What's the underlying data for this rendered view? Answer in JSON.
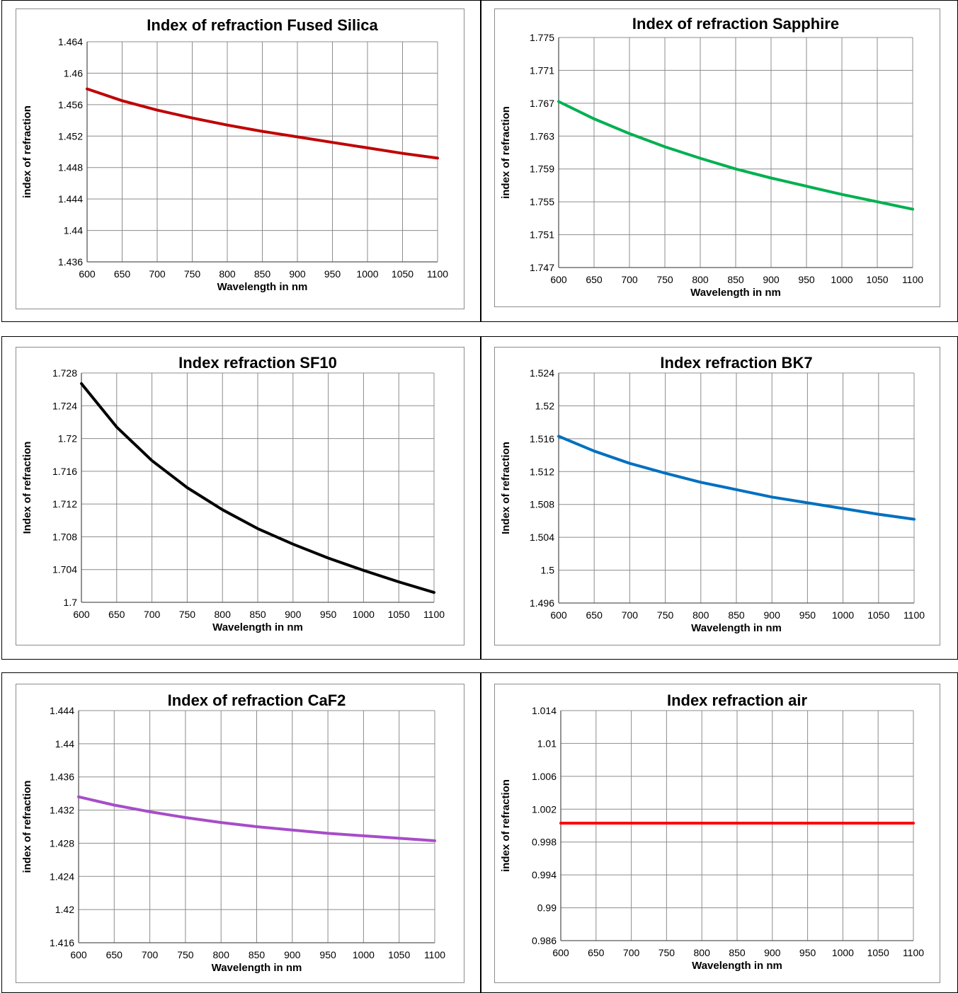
{
  "chart_data": [
    {
      "type": "line",
      "title": "Index of refraction Fused Silica",
      "xlabel": "Wavelength in nm",
      "ylabel": "index of refraction",
      "xlim": [
        600,
        1100
      ],
      "ylim": [
        1.436,
        1.464
      ],
      "x_ticks": [
        "600",
        "650",
        "700",
        "750",
        "800",
        "850",
        "900",
        "950",
        "1000",
        "1050",
        "1100"
      ],
      "y_ticks": [
        "1.436",
        "1.44",
        "1.444",
        "1.448",
        "1.452",
        "1.456",
        "1.46",
        "1.464"
      ],
      "grid": true,
      "color": "#c00000",
      "series": [
        {
          "x": [
            600,
            650,
            700,
            750,
            800,
            850,
            900,
            950,
            1000,
            1050,
            1100
          ],
          "y": [
            1.458,
            1.4565,
            1.4553,
            1.4543,
            1.4534,
            1.4526,
            1.4519,
            1.4512,
            1.4505,
            1.4498,
            1.4492
          ]
        }
      ]
    },
    {
      "type": "line",
      "title": "Index of refraction Sapphire",
      "xlabel": "Wavelength in nm",
      "ylabel": "index of refraction",
      "xlim": [
        600,
        1100
      ],
      "ylim": [
        1.747,
        1.775
      ],
      "x_ticks": [
        "600",
        "650",
        "700",
        "750",
        "800",
        "850",
        "900",
        "950",
        "1000",
        "1050",
        "1100"
      ],
      "y_ticks": [
        "1.747",
        "1.751",
        "1.755",
        "1.759",
        "1.763",
        "1.767",
        "1.771",
        "1.775"
      ],
      "grid": true,
      "color": "#00b050",
      "series": [
        {
          "x": [
            600,
            650,
            700,
            750,
            800,
            850,
            900,
            950,
            1000,
            1050,
            1100
          ],
          "y": [
            1.7672,
            1.7651,
            1.7633,
            1.7617,
            1.7603,
            1.759,
            1.7579,
            1.7569,
            1.7559,
            1.755,
            1.7541
          ]
        }
      ]
    },
    {
      "type": "line",
      "title": "Index refraction SF10",
      "xlabel": "Wavelength in nm",
      "ylabel": "Index of refraction",
      "xlim": [
        600,
        1100
      ],
      "ylim": [
        1.7,
        1.728
      ],
      "x_ticks": [
        "600",
        "650",
        "700",
        "750",
        "800",
        "850",
        "900",
        "950",
        "1000",
        "1050",
        "1100"
      ],
      "y_ticks": [
        "1.7",
        "1.704",
        "1.708",
        "1.712",
        "1.716",
        "1.72",
        "1.724",
        "1.728"
      ],
      "grid": true,
      "color": "#000000",
      "series": [
        {
          "x": [
            600,
            650,
            700,
            750,
            800,
            850,
            900,
            950,
            1000,
            1050,
            1100
          ],
          "y": [
            1.7267,
            1.7214,
            1.7173,
            1.714,
            1.7113,
            1.709,
            1.7071,
            1.7054,
            1.7039,
            1.7025,
            1.7012
          ]
        }
      ]
    },
    {
      "type": "line",
      "title": "Index refraction BK7",
      "xlabel": "Wavelength in nm",
      "ylabel": "Index of refraction",
      "xlim": [
        600,
        1100
      ],
      "ylim": [
        1.496,
        1.524
      ],
      "x_ticks": [
        "600",
        "650",
        "700",
        "750",
        "800",
        "850",
        "900",
        "950",
        "1000",
        "1050",
        "1100"
      ],
      "y_ticks": [
        "1.496",
        "1.5",
        "1.504",
        "1.508",
        "1.512",
        "1.516",
        "1.52",
        "1.524"
      ],
      "grid": true,
      "color": "#0070c0",
      "series": [
        {
          "x": [
            600,
            650,
            700,
            750,
            800,
            850,
            900,
            950,
            1000,
            1050,
            1100
          ],
          "y": [
            1.5163,
            1.5145,
            1.513,
            1.5118,
            1.5107,
            1.5098,
            1.5089,
            1.5082,
            1.5075,
            1.5068,
            1.5062
          ]
        }
      ]
    },
    {
      "type": "line",
      "title": "Index of refraction CaF2",
      "xlabel": "Wavelength in nm",
      "ylabel": "index of refraction",
      "xlim": [
        600,
        1100
      ],
      "ylim": [
        1.416,
        1.444
      ],
      "x_ticks": [
        "600",
        "650",
        "700",
        "750",
        "800",
        "850",
        "900",
        "950",
        "1000",
        "1050",
        "1100"
      ],
      "y_ticks": [
        "1.416",
        "1.42",
        "1.424",
        "1.428",
        "1.432",
        "1.436",
        "1.44",
        "1.444"
      ],
      "grid": true,
      "color": "#a64dc8",
      "series": [
        {
          "x": [
            600,
            650,
            700,
            750,
            800,
            850,
            900,
            950,
            1000,
            1050,
            1100
          ],
          "y": [
            1.4336,
            1.4326,
            1.4318,
            1.4311,
            1.4305,
            1.43,
            1.4296,
            1.4292,
            1.4289,
            1.4286,
            1.4283
          ]
        }
      ]
    },
    {
      "type": "line",
      "title": "Index refraction air",
      "xlabel": "Wavelength in nm",
      "ylabel": "index of refraction",
      "xlim": [
        600,
        1100
      ],
      "ylim": [
        0.986,
        1.014
      ],
      "x_ticks": [
        "600",
        "650",
        "700",
        "750",
        "800",
        "850",
        "900",
        "950",
        "1000",
        "1050",
        "1100"
      ],
      "y_ticks": [
        "0.986",
        "0.99",
        "0.994",
        "0.998",
        "1.002",
        "1.006",
        "1.01",
        "1.014"
      ],
      "grid": true,
      "color": "#ff0000",
      "series": [
        {
          "x": [
            600,
            650,
            700,
            750,
            800,
            850,
            900,
            950,
            1000,
            1050,
            1100
          ],
          "y": [
            1.0003,
            1.0003,
            1.0003,
            1.0003,
            1.0003,
            1.0003,
            1.0003,
            1.0003,
            1.0003,
            1.0003,
            1.0003
          ]
        }
      ]
    }
  ]
}
